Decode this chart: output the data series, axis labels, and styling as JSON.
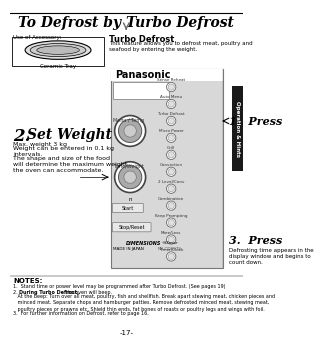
{
  "title": "To Defrost by Turbo Defrost",
  "bg_color": "#ffffff",
  "page_number": "-17-",
  "sidebar_text": "Operation & Hints",
  "sidebar_color": "#1a1a1a",
  "accessory_label": "Use of Accessory:",
  "ceramic_tray_label": "Ceramic Tray",
  "turbo_defrost_title": "Turbo Defrost",
  "turbo_defrost_desc": "This feature allows you to defrost meat, poultry and\nseafood by entering the weight.",
  "step1_label": "1.  Press",
  "step2_num": "2.",
  "step2_word": "Set Weight",
  "step2_detail1": "Max. weight 3 kg",
  "step2_detail2": "Weight can be entered in 0.1 kg\nintervals.",
  "step2_detail3": "The shape and size of the food\nwill determine the maximum weight\nthe oven can accommodate.",
  "step3_label": "3.  Press",
  "step3_detail": "Defrosting time appears in the\ndisplay window and begins to\ncount down.",
  "panel_bg": "#d8d8d8",
  "panel_border": "#888888",
  "panasonic_label": "Panasonic",
  "right_buttons": [
    "Sense Reheat",
    "Auto Menu",
    "Turbo Defrost",
    "Micro Power",
    "Grill",
    "Convection",
    "2 Level/Conv",
    "Combination",
    "Keep Prompting",
    "More/Less",
    "Timer/Clock"
  ],
  "notes_title": "NOTES:",
  "note1": "1.  Stand time or power level may be programmed after Turbo Defrost. (See pages 19)",
  "note3": "3.  For further information on Defrost, refer to page 16."
}
